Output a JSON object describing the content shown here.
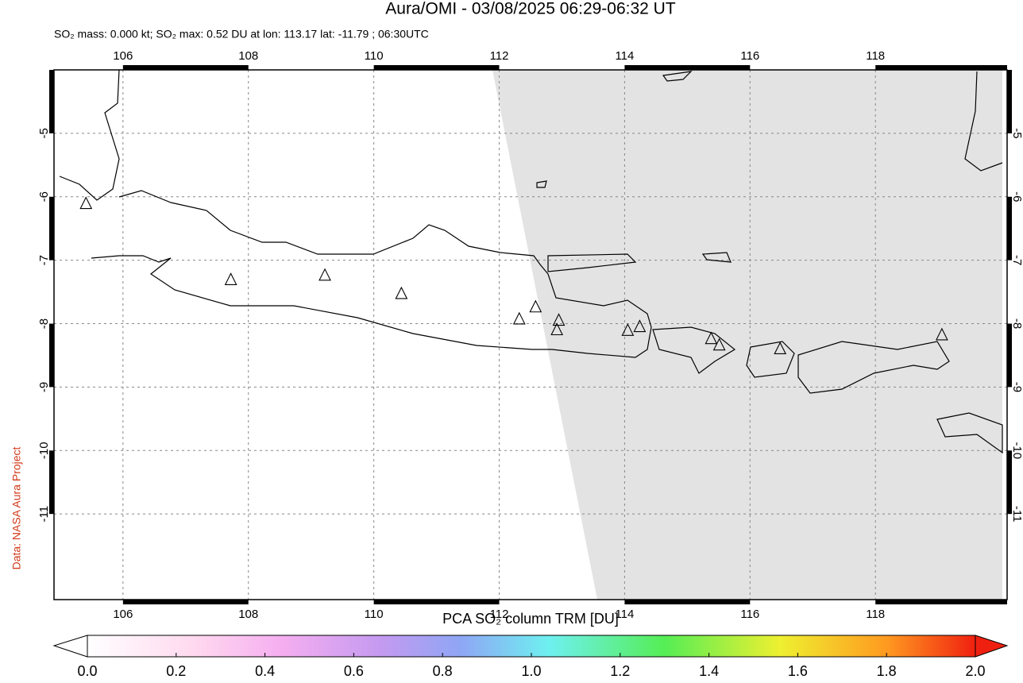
{
  "chart_data": {
    "type": "map",
    "title": "Aura/OMI - 03/08/2025 06:29-06:32 UT",
    "subtitle": "SO₂ mass: 0.000 kt; SO₂ max: 0.52 DU at lon: 113.17 lat: -11.79 ; 06:30UTC",
    "credit": "Data: NASA Aura Project",
    "xlim": [
      104.9,
      120.1
    ],
    "xticks": [
      106,
      108,
      110,
      112,
      114,
      116,
      118
    ],
    "ylim": [
      -12.35,
      -4
    ],
    "yticks": [
      -5,
      -6,
      -7,
      -8,
      -9,
      -10,
      -11
    ],
    "grid": true,
    "volcanoes": {
      "lon": [
        105.41,
        107.72,
        109.22,
        110.44,
        112.32,
        112.58,
        112.95,
        112.92,
        114.05,
        114.24,
        115.38,
        115.51,
        116.48,
        119.06
      ],
      "lat": [
        -6.11,
        -7.31,
        -7.24,
        -7.53,
        -7.93,
        -7.74,
        -7.95,
        -8.1,
        -8.11,
        -8.05,
        -8.24,
        -8.34,
        -8.4,
        -8.18
      ]
    },
    "colorbar": {
      "label": "PCA SO₂ column TRM [DU]",
      "lim": [
        0,
        2
      ],
      "ticks": [
        {
          "value": 0,
          "label": "0.0"
        },
        {
          "value": 0.2,
          "label": "0.2"
        },
        {
          "value": 0.4,
          "label": "0.4"
        },
        {
          "value": 0.6,
          "label": "0.6"
        },
        {
          "value": 0.8,
          "label": "0.8"
        },
        {
          "value": 1,
          "label": "1.0"
        },
        {
          "value": 1.2,
          "label": "1.2"
        },
        {
          "value": 1.4,
          "label": "1.4"
        },
        {
          "value": 1.6,
          "label": "1.6"
        },
        {
          "value": 1.8,
          "label": "1.8"
        },
        {
          "value": 2,
          "label": "2.0"
        }
      ]
    }
  }
}
